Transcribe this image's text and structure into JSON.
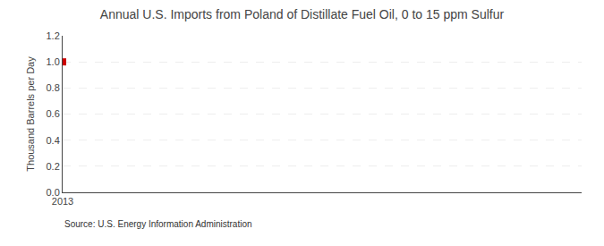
{
  "chart_data": {
    "type": "scatter",
    "title": "Annual U.S. Imports from Poland of Distillate Fuel Oil, 0 to 15 ppm Sulfur",
    "ylabel": "Thousand Barrels per Day",
    "annotation": "Source: U.S. Energy Information Administration",
    "x": [
      2013
    ],
    "values": [
      1.0
    ],
    "color": "#cc0000",
    "marker": "square",
    "xlim": [
      2013.0,
      2014.5
    ],
    "xticks": [
      2013
    ],
    "ylim": [
      0.0,
      1.2
    ],
    "yticks": [
      {
        "value": 0.0,
        "label": "0.0"
      },
      0.2,
      0.4,
      0.6,
      0.8,
      {
        "value": 1.0,
        "label": "1.0"
      },
      1.2
    ],
    "grid": true
  }
}
